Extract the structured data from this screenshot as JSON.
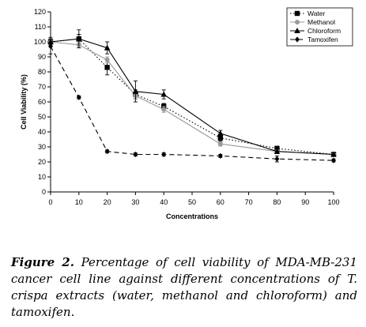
{
  "caption": {
    "label": "Figure 2.",
    "text": " Percentage of cell viability of MDA-MB-231 cancer cell line against different concentrations of T. crispa extracts (water, methanol and chloroform) and tamoxifen."
  },
  "chart_data": {
    "type": "line",
    "title": "",
    "xlabel": "Concentrations",
    "ylabel": "Cell Viability (%)",
    "xlim": [
      0,
      100
    ],
    "ylim": [
      0,
      120
    ],
    "xticks": [
      0,
      10,
      20,
      30,
      40,
      50,
      60,
      70,
      80,
      90,
      100
    ],
    "yticks": [
      0,
      10,
      20,
      30,
      40,
      50,
      60,
      70,
      80,
      90,
      100,
      110,
      120
    ],
    "grid": false,
    "legend_position": "top-right",
    "series": [
      {
        "name": "Water",
        "color": "#000000",
        "marker": "square",
        "line": "dotted",
        "x": [
          0,
          10,
          20,
          30,
          40,
          60,
          80,
          100
        ],
        "y": [
          100,
          102,
          83,
          65,
          57,
          36,
          29,
          25
        ],
        "err": [
          3,
          3,
          5,
          3,
          2,
          2,
          1.5,
          1
        ]
      },
      {
        "name": "Methanol",
        "color": "#999999",
        "marker": "circle",
        "line": "solid",
        "x": [
          0,
          10,
          20,
          30,
          40,
          60,
          80,
          100
        ],
        "y": [
          100,
          98,
          88,
          64,
          55,
          32,
          27,
          25
        ],
        "err": [
          2,
          2,
          2,
          2,
          2,
          1.5,
          1,
          1
        ]
      },
      {
        "name": "Chloroform",
        "color": "#000000",
        "marker": "triangle",
        "line": "solid",
        "x": [
          0,
          10,
          20,
          30,
          40,
          60,
          80,
          100
        ],
        "y": [
          100,
          102,
          96,
          67,
          65,
          39,
          27,
          25
        ],
        "err": [
          2,
          6,
          4,
          7,
          3,
          2,
          1.5,
          1
        ]
      },
      {
        "name": "Tamoxifen",
        "color": "#000000",
        "marker": "diamond",
        "line": "dashed",
        "x": [
          0,
          10,
          20,
          30,
          40,
          60,
          80,
          100
        ],
        "y": [
          97,
          63,
          27,
          25,
          25,
          24,
          22,
          21
        ],
        "err": [
          5,
          1,
          1,
          1,
          1,
          1,
          2,
          1
        ]
      }
    ]
  }
}
